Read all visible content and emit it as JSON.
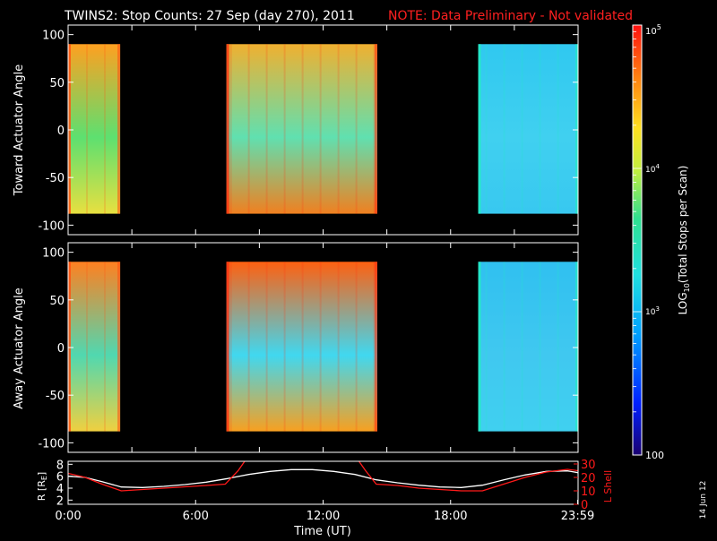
{
  "header": {
    "title": "TWINS2: Stop Counts: 27 Sep (day 270), 2011",
    "note": "NOTE: Data Preliminary - Not validated",
    "note_color": "#ff2020"
  },
  "side_stamp": "14 Jun 12",
  "colorbar": {
    "label_prefix": "LOG",
    "label_sub": "10",
    "label_suffix": "(Total Stops per Scan)",
    "tick_top": "10",
    "tick_top_exp": "5",
    "tick_mid": "10",
    "tick_mid_exp": "4",
    "tick_low": "10",
    "tick_low_exp": "3",
    "tick_bottom": "100",
    "log_min": 2,
    "log_max": 5
  },
  "chart_data": [
    {
      "type": "heatmap",
      "ylabel": "Toward Actuator Angle",
      "ytick_labels": [
        "100",
        "50",
        "0",
        "-50",
        "-100"
      ],
      "yticks": [
        100,
        50,
        0,
        -50,
        -100
      ],
      "ylim": [
        -110,
        110
      ],
      "xlim": [
        0,
        24
      ],
      "angle_range": [
        -88,
        90
      ],
      "time_blocks": [
        {
          "start": 0.0,
          "end": 2.45,
          "color_top": "#ffa020",
          "color_mid": "#5de070",
          "color_bottom": "#e8e040",
          "edge_color": "#ff5010"
        },
        {
          "start": 7.45,
          "end": 14.55,
          "color_top": "#f0b030",
          "color_mid": "#60e0b0",
          "color_bottom": "#f08020",
          "edge_color": "#ff3010"
        },
        {
          "start": 19.3,
          "end": 24.0,
          "color_top": "#30c8f0",
          "color_mid": "#40d0f0",
          "color_bottom": "#38c8f0",
          "edge_color": "#20f0c0"
        }
      ]
    },
    {
      "type": "heatmap",
      "ylabel": "Away Actuator Angle",
      "ytick_labels": [
        "100",
        "50",
        "0",
        "-50",
        "-100"
      ],
      "yticks": [
        100,
        50,
        0,
        -50,
        -100
      ],
      "ylim": [
        -110,
        110
      ],
      "xlim": [
        0,
        24
      ],
      "angle_range": [
        -88,
        90
      ],
      "time_blocks": [
        {
          "start": 0.0,
          "end": 2.45,
          "color_top": "#ff8020",
          "color_mid": "#50d8b0",
          "color_bottom": "#f0d040",
          "edge_color": "#ff5010"
        },
        {
          "start": 7.45,
          "end": 14.55,
          "color_top": "#ff6010",
          "color_mid": "#40d8f0",
          "color_bottom": "#f8a020",
          "edge_color": "#ff3010"
        },
        {
          "start": 19.3,
          "end": 24.0,
          "color_top": "#30c0f0",
          "color_mid": "#40c8f0",
          "color_bottom": "#40d0f0",
          "edge_color": "#20f0c0"
        }
      ]
    },
    {
      "type": "line",
      "ylabel_left": "R [R",
      "ylabel_left_sub": "E",
      "ylabel_left_end": "]",
      "ylabel_right": "L Shell",
      "left_ytick_labels": [
        "8",
        "6",
        "4",
        "2"
      ],
      "left_yticks": [
        8,
        6,
        4,
        2
      ],
      "left_ylim": [
        1.3,
        8.5
      ],
      "right_ytick_labels": [
        "30",
        "20",
        "10",
        "0"
      ],
      "right_yticks": [
        30,
        20,
        10,
        0
      ],
      "right_ylim": [
        0,
        32
      ],
      "xtick_labels": [
        "0:00",
        "6:00",
        "12:00",
        "18:00",
        "23:59"
      ],
      "xticks": [
        0,
        6,
        12,
        18,
        23.98
      ],
      "xlim": [
        0,
        24
      ],
      "xlabel": "Time (UT)",
      "series": [
        {
          "color": "#ffffff",
          "x": [
            0,
            0.8,
            1.6,
            2.5,
            3.5,
            4.5,
            5.5,
            6.5,
            7.5,
            8.5,
            9.5,
            10.5,
            11.5,
            12.5,
            13.5,
            14.5,
            15.5,
            16.5,
            17.5,
            18.5,
            19.5,
            20.5,
            21.5,
            22.5,
            23.5,
            24
          ],
          "y": [
            6.0,
            5.8,
            5.1,
            4.2,
            4.1,
            4.3,
            4.6,
            5.0,
            5.6,
            6.3,
            6.8,
            7.1,
            7.1,
            6.8,
            6.3,
            5.4,
            4.9,
            4.5,
            4.2,
            4.1,
            4.5,
            5.4,
            6.2,
            6.8,
            6.9,
            6.6
          ]
        },
        {
          "color": "#ff1a1a",
          "x": [
            0,
            0.8,
            1.6,
            2.5,
            3.5,
            4.5,
            5.5,
            6.5,
            7.4,
            8.0,
            8.4,
            13.6,
            14.0,
            14.5,
            15.5,
            16.5,
            17.5,
            18.5,
            19.5,
            20.5,
            21.5,
            22.5,
            23.5,
            24
          ],
          "y": [
            23,
            20,
            15,
            10,
            11,
            12,
            13,
            14,
            15,
            25,
            34,
            34,
            25,
            15,
            14,
            12,
            11,
            10,
            10,
            15,
            20,
            24,
            26,
            25
          ]
        }
      ]
    }
  ]
}
